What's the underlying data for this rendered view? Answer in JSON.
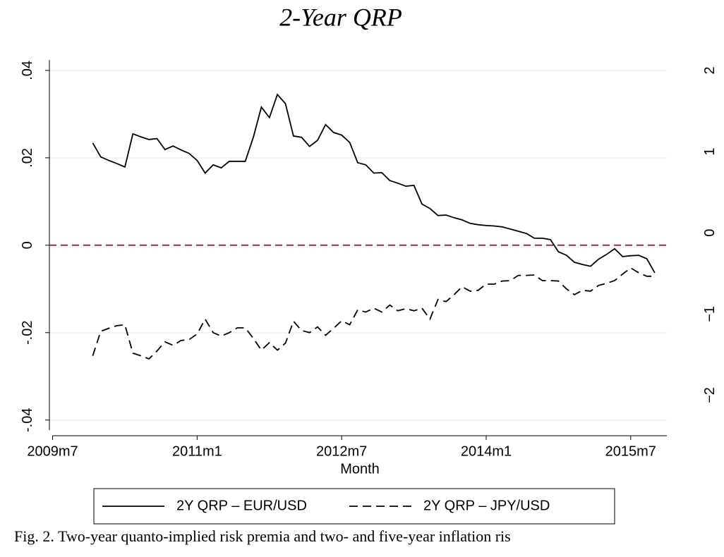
{
  "chart_data": {
    "type": "line",
    "title": "2-Year QRP",
    "x_label": "Month",
    "x": [
      599,
      600,
      601,
      602,
      603,
      604,
      605,
      606,
      607,
      608,
      609,
      610,
      611,
      612,
      613,
      614,
      615,
      616,
      617,
      618,
      619,
      620,
      621,
      622,
      623,
      624,
      625,
      626,
      627,
      628,
      629,
      630,
      631,
      632,
      633,
      634,
      635,
      636,
      637,
      638,
      639,
      640,
      641,
      642,
      643,
      644,
      645,
      646,
      647,
      648,
      649,
      650,
      651,
      652,
      653,
      654,
      655,
      656,
      657,
      658,
      659,
      660,
      661,
      662,
      663,
      664,
      665,
      666,
      667,
      668,
      669
    ],
    "xlim": [
      593.6,
      670.5
    ],
    "xticks": [
      {
        "value": 594,
        "label": "2009m7"
      },
      {
        "value": 612,
        "label": "2011m1"
      },
      {
        "value": 630,
        "label": "2012m7"
      },
      {
        "value": 648,
        "label": "2014m1"
      },
      {
        "value": 666,
        "label": "2015m7"
      }
    ],
    "ylim": [
      -0.0423,
      0.0424
    ],
    "yticks": [
      {
        "value": 0.04,
        "label": ".04"
      },
      {
        "value": 0.02,
        "label": ".02"
      },
      0,
      {
        "value": -0.02,
        "label": "-.02"
      },
      {
        "value": -0.04,
        "label": "-.04"
      }
    ],
    "y2lim": [
      -2.43,
      2.13
    ],
    "y2ticks": [
      2,
      1,
      0,
      {
        "value": -1,
        "label": "−1"
      },
      {
        "value": -2,
        "label": "−2"
      }
    ],
    "grid": true,
    "reference_line": {
      "value": 0,
      "color": "#b22234"
    },
    "series": [
      {
        "name": "2Y QRP – EUR/USD",
        "color": "#000000",
        "style": "solid",
        "values": [
          0.0234,
          0.0202,
          0.0194,
          0.0187,
          0.0179,
          0.0255,
          0.0248,
          0.0242,
          0.0244,
          0.0219,
          0.0227,
          0.0218,
          0.021,
          0.0194,
          0.0165,
          0.0184,
          0.0177,
          0.0192,
          0.0192,
          0.0192,
          0.0247,
          0.0316,
          0.0292,
          0.0345,
          0.0324,
          0.025,
          0.0247,
          0.0226,
          0.024,
          0.0276,
          0.0258,
          0.0252,
          0.0235,
          0.0189,
          0.0184,
          0.0165,
          0.0166,
          0.0148,
          0.0142,
          0.0135,
          0.0137,
          0.0094,
          0.0084,
          0.0068,
          0.0069,
          0.0063,
          0.0058,
          0.005,
          0.0047,
          0.0045,
          0.0044,
          0.0042,
          0.0037,
          0.0032,
          0.0027,
          0.0016,
          0.0016,
          0.0013,
          -0.0015,
          -0.0023,
          -0.0039,
          -0.0044,
          -0.0048,
          -0.0032,
          -0.0021,
          -0.0008,
          -0.0026,
          -0.0024,
          -0.0023,
          -0.0031,
          -0.0063
        ]
      },
      {
        "name": "2Y QRP – JPY/USD",
        "color": "#000000",
        "style": "dashed",
        "values": [
          -0.0253,
          -0.0197,
          -0.019,
          -0.0184,
          -0.0182,
          -0.0247,
          -0.0253,
          -0.026,
          -0.0242,
          -0.0221,
          -0.0229,
          -0.0218,
          -0.0216,
          -0.0203,
          -0.0169,
          -0.02,
          -0.0208,
          -0.02,
          -0.0189,
          -0.0189,
          -0.0213,
          -0.024,
          -0.0223,
          -0.024,
          -0.0224,
          -0.0174,
          -0.0195,
          -0.02,
          -0.0187,
          -0.0206,
          -0.019,
          -0.0173,
          -0.0182,
          -0.0148,
          -0.0153,
          -0.0144,
          -0.0153,
          -0.0137,
          -0.015,
          -0.0145,
          -0.015,
          -0.0144,
          -0.0169,
          -0.0124,
          -0.0129,
          -0.0113,
          -0.0095,
          -0.0105,
          -0.0103,
          -0.0089,
          -0.0089,
          -0.0082,
          -0.0081,
          -0.0069,
          -0.0069,
          -0.0068,
          -0.0081,
          -0.0081,
          -0.0082,
          -0.01,
          -0.0113,
          -0.0103,
          -0.0105,
          -0.0092,
          -0.0087,
          -0.0081,
          -0.0066,
          -0.0052,
          -0.0063,
          -0.0071,
          -0.0071
        ]
      }
    ],
    "caption": "Fig. 2. Two-year quanto-implied risk premia and two- and five-year inflation ris"
  }
}
